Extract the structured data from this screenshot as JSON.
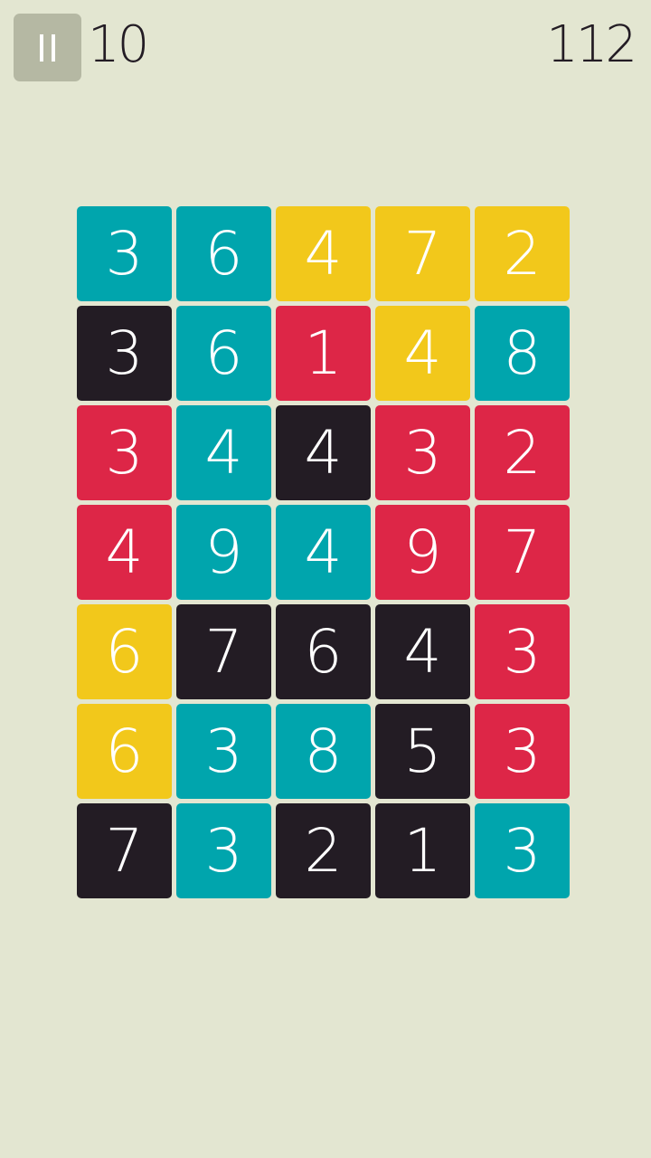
{
  "hud": {
    "moves": "10",
    "score": "112",
    "pause_icon": "pause-icon"
  },
  "colors": {
    "teal": "#00a5ad",
    "yellow": "#f2c81b",
    "red": "#dd2647",
    "black": "#231c24",
    "background": "#e3e6d1",
    "pause": "#b5b8a3"
  },
  "board": [
    [
      {
        "n": "3",
        "c": "teal"
      },
      {
        "n": "6",
        "c": "teal"
      },
      {
        "n": "4",
        "c": "yellow"
      },
      {
        "n": "7",
        "c": "yellow"
      },
      {
        "n": "2",
        "c": "yellow"
      }
    ],
    [
      {
        "n": "3",
        "c": "black"
      },
      {
        "n": "6",
        "c": "teal"
      },
      {
        "n": "1",
        "c": "red"
      },
      {
        "n": "4",
        "c": "yellow"
      },
      {
        "n": "8",
        "c": "teal"
      }
    ],
    [
      {
        "n": "3",
        "c": "red"
      },
      {
        "n": "4",
        "c": "teal"
      },
      {
        "n": "4",
        "c": "black"
      },
      {
        "n": "3",
        "c": "red"
      },
      {
        "n": "2",
        "c": "red"
      }
    ],
    [
      {
        "n": "4",
        "c": "red"
      },
      {
        "n": "9",
        "c": "teal"
      },
      {
        "n": "4",
        "c": "teal"
      },
      {
        "n": "9",
        "c": "red"
      },
      {
        "n": "7",
        "c": "red"
      }
    ],
    [
      {
        "n": "6",
        "c": "yellow"
      },
      {
        "n": "7",
        "c": "black"
      },
      {
        "n": "6",
        "c": "black"
      },
      {
        "n": "4",
        "c": "black"
      },
      {
        "n": "3",
        "c": "red"
      }
    ],
    [
      {
        "n": "6",
        "c": "yellow"
      },
      {
        "n": "3",
        "c": "teal"
      },
      {
        "n": "8",
        "c": "teal"
      },
      {
        "n": "5",
        "c": "black"
      },
      {
        "n": "3",
        "c": "red"
      }
    ],
    [
      {
        "n": "7",
        "c": "black"
      },
      {
        "n": "3",
        "c": "teal"
      },
      {
        "n": "2",
        "c": "black"
      },
      {
        "n": "1",
        "c": "black"
      },
      {
        "n": "3",
        "c": "teal"
      }
    ]
  ]
}
